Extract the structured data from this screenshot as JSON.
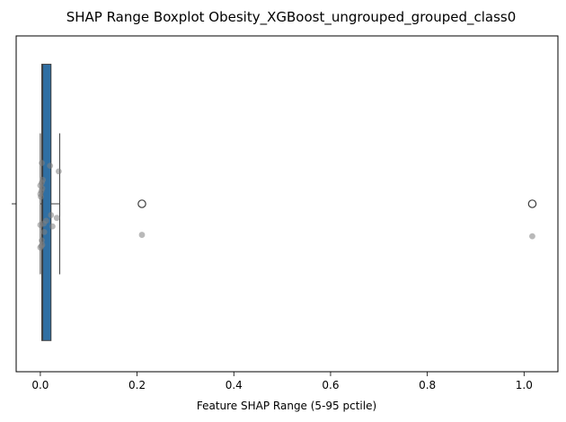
{
  "chart_data": {
    "type": "boxplot",
    "title": "SHAP Range Boxplot Obesity_XGBoost_ungrouped_grouped_class0",
    "xlabel": "Feature SHAP Range (5-95 pctile)",
    "ylabel": "",
    "xlim": [
      -0.05,
      1.07
    ],
    "xticks": [
      0.0,
      0.2,
      0.4,
      0.6,
      0.8,
      1.0
    ],
    "xtick_labels": [
      "0.0",
      "0.2",
      "0.4",
      "0.6",
      "0.8",
      "1.0"
    ],
    "grid": false,
    "orientation": "horizontal",
    "box": {
      "q1": 0.003,
      "median": 0.005,
      "q3": 0.022,
      "whisker_low": 0.0,
      "whisker_high": 0.04,
      "fill": "#2f6fa3",
      "outliers": [
        0.21,
        1.017
      ]
    },
    "points": {
      "color": "#7f7f7f",
      "x": [
        0.003,
        0.02,
        0.038,
        0.005,
        0.003,
        0.0,
        0.004,
        0.002,
        0.001,
        0.0,
        0.022,
        0.034,
        0.012,
        0.007,
        0.0,
        0.025,
        0.008,
        0.003,
        0.0,
        0.002,
        0.004,
        0.21,
        1.017
      ],
      "jitter": [
        -0.29,
        -0.27,
        -0.23,
        -0.17,
        -0.15,
        -0.13,
        -0.11,
        -0.09,
        -0.05,
        -0.07,
        0.08,
        0.1,
        0.12,
        0.14,
        0.15,
        0.16,
        0.2,
        0.26,
        0.31,
        0.3,
        0.29,
        0.22,
        0.23
      ]
    }
  }
}
